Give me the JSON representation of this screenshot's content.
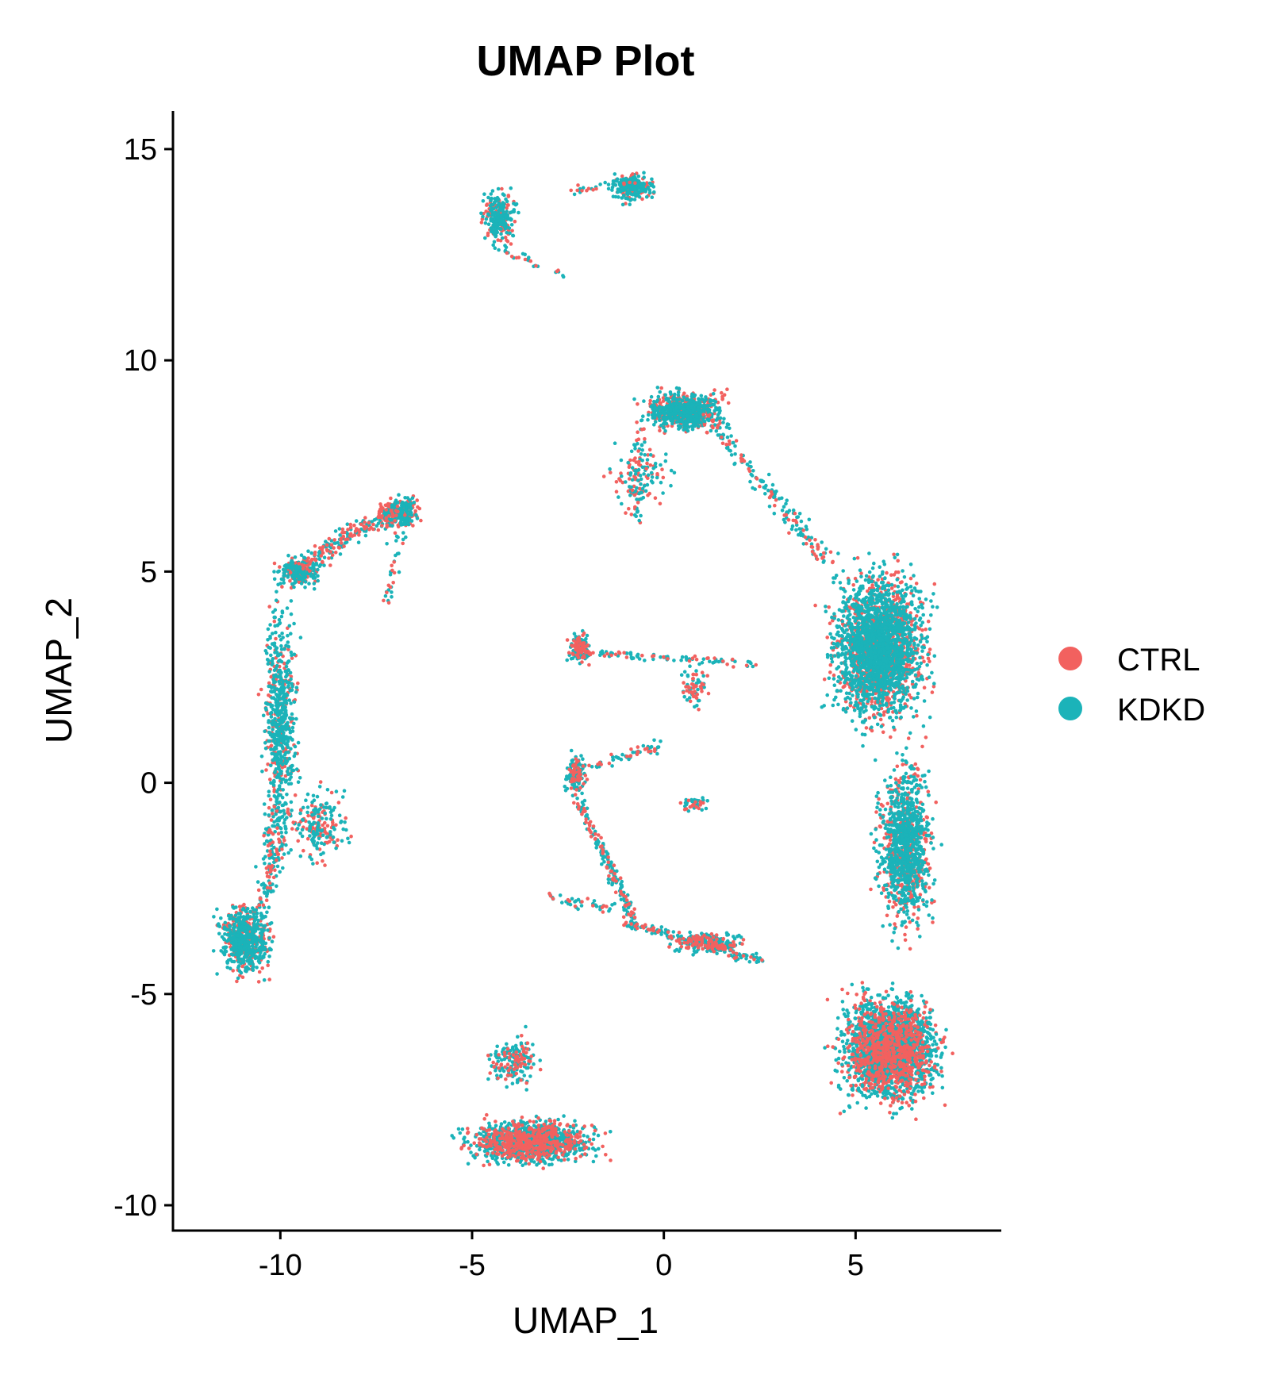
{
  "chart_data": {
    "type": "scatter",
    "title": "UMAP Plot",
    "xlabel": "UMAP_1",
    "ylabel": "UMAP_2",
    "xlim": [
      -12.8,
      8.8
    ],
    "ylim": [
      -10.6,
      15.9
    ],
    "xticks": [
      -10,
      -5,
      0,
      5
    ],
    "xtick_labels": [
      "-10",
      "-5",
      "0",
      "5"
    ],
    "yticks": [
      -10,
      -5,
      0,
      5,
      10,
      15
    ],
    "ytick_labels": [
      "-10",
      "-5",
      "0",
      "5",
      "10",
      "15"
    ],
    "grid": false,
    "legend_position": "right",
    "series": [
      {
        "name": "CTRL",
        "color": "#F2615F"
      },
      {
        "name": "KDKD",
        "color": "#1BB3B9"
      }
    ],
    "clusters": [
      {
        "center": [
          -4.3,
          13.4
        ],
        "spread": [
          0.35,
          0.55
        ],
        "n": 260,
        "ctrl_frac": 0.4
      },
      {
        "center": [
          -0.8,
          14.1
        ],
        "spread": [
          0.45,
          0.25
        ],
        "n": 240,
        "ctrl_frac": 0.35
      },
      {
        "center": [
          0.5,
          8.8
        ],
        "spread": [
          0.85,
          0.35
        ],
        "n": 700,
        "ctrl_frac": 0.4
      },
      {
        "center": [
          -0.6,
          7.2
        ],
        "spread": [
          0.6,
          0.7
        ],
        "n": 120,
        "ctrl_frac": 0.35
      },
      {
        "center": [
          -6.9,
          6.4
        ],
        "spread": [
          0.4,
          0.3
        ],
        "n": 260,
        "ctrl_frac": 0.4
      },
      {
        "center": [
          -9.5,
          5.0
        ],
        "spread": [
          0.45,
          0.3
        ],
        "n": 200,
        "ctrl_frac": 0.35
      },
      {
        "center": [
          -10.0,
          1.5
        ],
        "spread": [
          0.35,
          2.2
        ],
        "n": 650,
        "ctrl_frac": 0.3
      },
      {
        "center": [
          -9.0,
          -1.0
        ],
        "spread": [
          0.6,
          0.7
        ],
        "n": 200,
        "ctrl_frac": 0.45
      },
      {
        "center": [
          -10.9,
          -3.7
        ],
        "spread": [
          0.55,
          0.65
        ],
        "n": 700,
        "ctrl_frac": 0.35
      },
      {
        "center": [
          5.6,
          3.2
        ],
        "spread": [
          0.95,
          1.4
        ],
        "n": 2600,
        "ctrl_frac": 0.35
      },
      {
        "center": [
          6.3,
          -1.5
        ],
        "spread": [
          0.55,
          1.5
        ],
        "n": 1200,
        "ctrl_frac": 0.35
      },
      {
        "center": [
          5.9,
          -6.3
        ],
        "spread": [
          1.0,
          1.0
        ],
        "n": 2600,
        "ctrl_frac": 0.35
      },
      {
        "center": [
          -3.5,
          -8.5
        ],
        "spread": [
          1.35,
          0.4
        ],
        "n": 1300,
        "ctrl_frac": 0.35
      },
      {
        "center": [
          -3.9,
          -6.6
        ],
        "spread": [
          0.5,
          0.5
        ],
        "n": 180,
        "ctrl_frac": 0.35
      },
      {
        "center": [
          -2.2,
          3.2
        ],
        "spread": [
          0.22,
          0.28
        ],
        "n": 160,
        "ctrl_frac": 0.3
      },
      {
        "center": [
          0.8,
          2.3
        ],
        "spread": [
          0.25,
          0.4
        ],
        "n": 70,
        "ctrl_frac": 0.5
      },
      {
        "center": [
          -2.3,
          0.2
        ],
        "spread": [
          0.2,
          0.35
        ],
        "n": 150,
        "ctrl_frac": 0.3
      },
      {
        "center": [
          0.8,
          -0.5
        ],
        "spread": [
          0.3,
          0.12
        ],
        "n": 40,
        "ctrl_frac": 0.3
      },
      {
        "center": [
          1.2,
          -3.8
        ],
        "spread": [
          0.7,
          0.2
        ],
        "n": 200,
        "ctrl_frac": 0.3
      }
    ],
    "paths": [
      {
        "from": [
          0.9,
          8.9
        ],
        "to": [
          4.3,
          5.2
        ],
        "n": 180,
        "width": 0.22,
        "ctrl_frac": 0.35
      },
      {
        "from": [
          -9.6,
          5.0
        ],
        "to": [
          -7.0,
          6.5
        ],
        "n": 220,
        "width": 0.25,
        "ctrl_frac": 0.45
      },
      {
        "from": [
          -10.0,
          -0.5
        ],
        "to": [
          -10.4,
          -2.8
        ],
        "n": 160,
        "width": 0.3,
        "ctrl_frac": 0.3
      },
      {
        "from": [
          -2.3,
          -0.3
        ],
        "to": [
          -0.8,
          -3.2
        ],
        "n": 180,
        "width": 0.12,
        "ctrl_frac": 0.3
      },
      {
        "from": [
          -1.0,
          -3.3
        ],
        "to": [
          2.5,
          -4.2
        ],
        "n": 180,
        "width": 0.12,
        "ctrl_frac": 0.3
      },
      {
        "from": [
          -2.1,
          3.1
        ],
        "to": [
          2.4,
          2.8
        ],
        "n": 90,
        "width": 0.08,
        "ctrl_frac": 0.45
      },
      {
        "from": [
          -2.2,
          0.3
        ],
        "to": [
          0.0,
          0.9
        ],
        "n": 60,
        "width": 0.12,
        "ctrl_frac": 0.4
      },
      {
        "from": [
          -3.0,
          -2.7
        ],
        "to": [
          -1.2,
          -3.0
        ],
        "n": 40,
        "width": 0.12,
        "ctrl_frac": 0.3
      },
      {
        "from": [
          -4.5,
          12.7
        ],
        "to": [
          -2.5,
          12.0
        ],
        "n": 30,
        "width": 0.1,
        "ctrl_frac": 0.3
      },
      {
        "from": [
          -2.5,
          14.0
        ],
        "to": [
          -0.6,
          14.3
        ],
        "n": 30,
        "width": 0.1,
        "ctrl_frac": 0.3
      },
      {
        "from": [
          -6.8,
          6.2
        ],
        "to": [
          -7.2,
          4.2
        ],
        "n": 40,
        "width": 0.2,
        "ctrl_frac": 0.3
      },
      {
        "from": [
          -0.6,
          8.4
        ],
        "to": [
          -0.7,
          6.3
        ],
        "n": 40,
        "width": 0.15,
        "ctrl_frac": 0.3
      }
    ]
  }
}
